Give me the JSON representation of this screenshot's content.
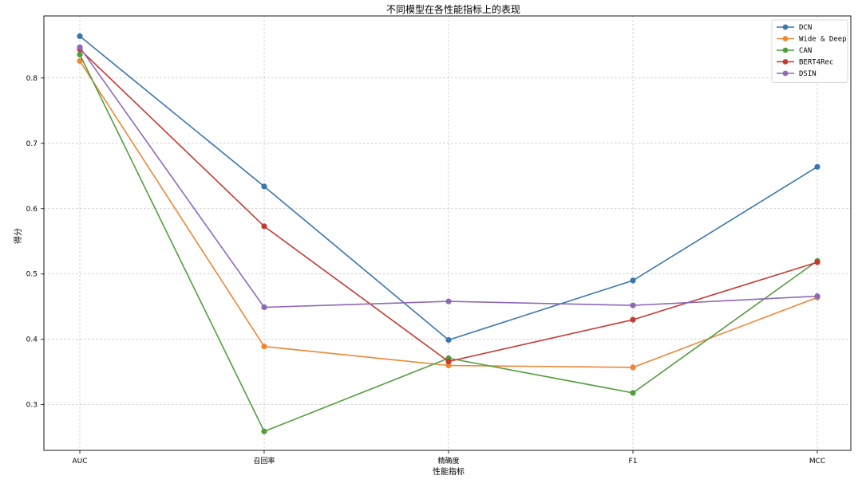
{
  "chart_data": {
    "type": "line",
    "title": "不同模型在各性能指标上的表现",
    "xlabel": "性能指标",
    "ylabel": "得分",
    "categories": [
      "AUC",
      "召回率",
      "精确度",
      "F1",
      "MCC"
    ],
    "ylim": [
      0.23,
      0.895
    ],
    "yticks": [
      0.3,
      0.4,
      0.5,
      0.6,
      0.7,
      0.8
    ],
    "ytick_labels": [
      "0.3",
      "0.4",
      "0.5",
      "0.6",
      "0.7",
      "0.8"
    ],
    "grid": true,
    "legend_position": "top-right",
    "series": [
      {
        "name": "DCN",
        "color": "#3b75af",
        "values": [
          0.864,
          0.634,
          0.399,
          0.49,
          0.664
        ]
      },
      {
        "name": "Wide & Deep",
        "color": "#ef8636",
        "values": [
          0.826,
          0.389,
          0.36,
          0.357,
          0.464
        ]
      },
      {
        "name": "CAN",
        "color": "#519e3e",
        "values": [
          0.836,
          0.259,
          0.371,
          0.318,
          0.52
        ]
      },
      {
        "name": "BERT4Rec",
        "color": "#c53a32",
        "values": [
          0.844,
          0.573,
          0.366,
          0.43,
          0.518
        ]
      },
      {
        "name": "DSIN",
        "color": "#8d69b8",
        "values": [
          0.847,
          0.449,
          0.458,
          0.452,
          0.466
        ]
      }
    ]
  }
}
